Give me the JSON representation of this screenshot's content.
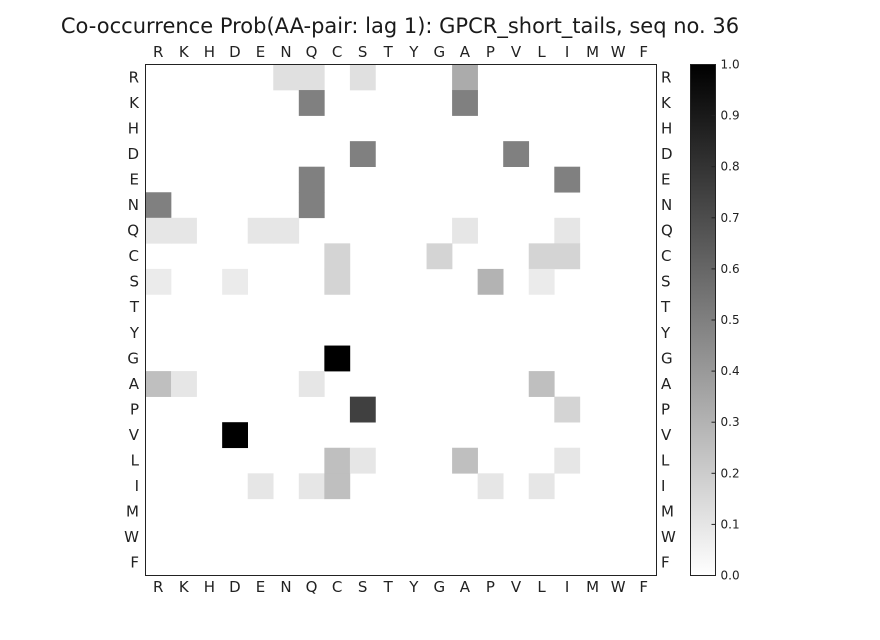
{
  "chart_data": {
    "type": "heatmap",
    "title": "Co-occurrence Prob(AA-pair: lag 1):  GPCR_short_tails, seq no. 36",
    "x_labels": [
      "R",
      "K",
      "H",
      "D",
      "E",
      "N",
      "Q",
      "C",
      "S",
      "T",
      "Y",
      "G",
      "A",
      "P",
      "V",
      "L",
      "I",
      "M",
      "W",
      "F"
    ],
    "y_labels": [
      "R",
      "K",
      "H",
      "D",
      "E",
      "N",
      "Q",
      "C",
      "S",
      "T",
      "Y",
      "G",
      "A",
      "P",
      "V",
      "L",
      "I",
      "M",
      "W",
      "F"
    ],
    "colormap": "greys",
    "vmin": 0.0,
    "vmax": 1.0,
    "colorbar_ticks": [
      "0.0",
      "0.1",
      "0.2",
      "0.3",
      "0.4",
      "0.5",
      "0.6",
      "0.7",
      "0.8",
      "0.9",
      "1.0"
    ],
    "cells": [
      {
        "row": "R",
        "col": "N",
        "value": 0.12
      },
      {
        "row": "R",
        "col": "Q",
        "value": 0.12
      },
      {
        "row": "R",
        "col": "S",
        "value": 0.12
      },
      {
        "row": "R",
        "col": "A",
        "value": 0.33
      },
      {
        "row": "K",
        "col": "Q",
        "value": 0.5
      },
      {
        "row": "K",
        "col": "A",
        "value": 0.5
      },
      {
        "row": "D",
        "col": "S",
        "value": 0.5
      },
      {
        "row": "D",
        "col": "V",
        "value": 0.5
      },
      {
        "row": "E",
        "col": "Q",
        "value": 0.5
      },
      {
        "row": "E",
        "col": "I",
        "value": 0.5
      },
      {
        "row": "N",
        "col": "R",
        "value": 0.5
      },
      {
        "row": "N",
        "col": "Q",
        "value": 0.5
      },
      {
        "row": "Q",
        "col": "R",
        "value": 0.1
      },
      {
        "row": "Q",
        "col": "K",
        "value": 0.1
      },
      {
        "row": "Q",
        "col": "E",
        "value": 0.1
      },
      {
        "row": "Q",
        "col": "N",
        "value": 0.1
      },
      {
        "row": "Q",
        "col": "A",
        "value": 0.1
      },
      {
        "row": "Q",
        "col": "I",
        "value": 0.1
      },
      {
        "row": "C",
        "col": "C",
        "value": 0.17
      },
      {
        "row": "C",
        "col": "G",
        "value": 0.17
      },
      {
        "row": "C",
        "col": "L",
        "value": 0.17
      },
      {
        "row": "C",
        "col": "I",
        "value": 0.17
      },
      {
        "row": "S",
        "col": "R",
        "value": 0.08
      },
      {
        "row": "S",
        "col": "D",
        "value": 0.08
      },
      {
        "row": "S",
        "col": "C",
        "value": 0.17
      },
      {
        "row": "S",
        "col": "P",
        "value": 0.3
      },
      {
        "row": "S",
        "col": "L",
        "value": 0.08
      },
      {
        "row": "G",
        "col": "C",
        "value": 1.0
      },
      {
        "row": "A",
        "col": "R",
        "value": 0.25
      },
      {
        "row": "A",
        "col": "K",
        "value": 0.1
      },
      {
        "row": "A",
        "col": "Q",
        "value": 0.1
      },
      {
        "row": "A",
        "col": "L",
        "value": 0.25
      },
      {
        "row": "P",
        "col": "S",
        "value": 0.75
      },
      {
        "row": "P",
        "col": "I",
        "value": 0.17
      },
      {
        "row": "V",
        "col": "D",
        "value": 1.0
      },
      {
        "row": "L",
        "col": "C",
        "value": 0.25
      },
      {
        "row": "L",
        "col": "S",
        "value": 0.1
      },
      {
        "row": "L",
        "col": "A",
        "value": 0.25
      },
      {
        "row": "L",
        "col": "I",
        "value": 0.1
      },
      {
        "row": "I",
        "col": "E",
        "value": 0.1
      },
      {
        "row": "I",
        "col": "Q",
        "value": 0.1
      },
      {
        "row": "I",
        "col": "C",
        "value": 0.25
      },
      {
        "row": "I",
        "col": "P",
        "value": 0.1
      },
      {
        "row": "I",
        "col": "L",
        "value": 0.1
      }
    ]
  }
}
